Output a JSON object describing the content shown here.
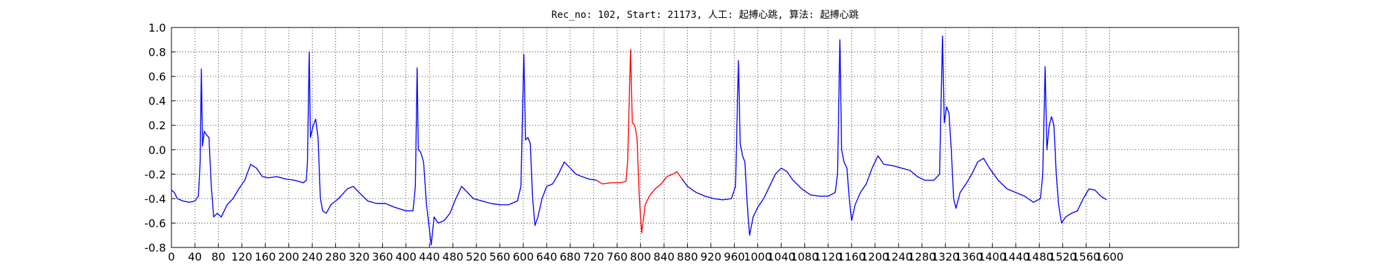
{
  "chart_data": {
    "type": "line",
    "title": "Rec_no: 102, Start: 21173, 人工: 起搏心跳, 算法: 起搏心跳",
    "xlim": [
      0,
      1820
    ],
    "ylim": [
      -0.8,
      1.0
    ],
    "xticks": [
      0,
      40,
      80,
      120,
      160,
      200,
      240,
      280,
      320,
      360,
      400,
      440,
      480,
      520,
      560,
      600,
      640,
      680,
      720,
      760,
      800,
      840,
      880,
      920,
      960,
      1000,
      1040,
      1080,
      1120,
      1160,
      1200,
      1240,
      1280,
      1320,
      1360,
      1400,
      1440,
      1480,
      1520,
      1560,
      1600
    ],
    "yticks": [
      -0.8,
      -0.6,
      -0.4,
      -0.2,
      {
        "value": 0.0,
        "label": "0.0"
      },
      0.2,
      0.4,
      0.6,
      0.8,
      {
        "value": 1.0,
        "label": "1.0"
      }
    ],
    "grid": true,
    "series": [
      {
        "color": "#0000ff",
        "x": [
          0,
          5,
          10,
          20,
          30,
          40,
          46,
          49,
          51,
          53,
          56,
          60,
          64,
          68,
          72,
          78,
          85,
          95,
          105,
          115,
          125,
          135,
          145,
          155,
          165,
          180,
          195,
          210,
          225,
          230,
          232,
          235,
          237,
          242,
          246,
          250,
          254,
          258,
          264,
          272,
          285,
          300,
          310,
          320,
          335,
          350,
          365,
          380,
          400,
          412,
          416,
          419,
          421,
          425,
          430,
          435,
          440,
          443,
          448,
          455,
          465,
          475,
          485,
          495,
          505,
          515,
          530,
          545,
          560,
          575,
          590,
          596,
          601,
          604,
          608,
          612,
          616,
          620,
          625,
          632,
          640,
          650,
          660,
          670,
          680,
          690,
          700,
          712,
          725,
          800,
          871,
          880,
          895,
          910,
          925,
          940,
          955,
          962,
          967,
          970,
          974,
          978,
          982,
          986,
          992,
          1000,
          1010,
          1020,
          1030,
          1040,
          1050,
          1060,
          1075,
          1090,
          1105,
          1120,
          1132,
          1136,
          1140,
          1143,
          1147,
          1152,
          1156,
          1160,
          1166,
          1175,
          1185,
          1195,
          1205,
          1215,
          1230,
          1245,
          1260,
          1272,
          1285,
          1300,
          1310,
          1315,
          1318,
          1322,
          1326,
          1330,
          1334,
          1338,
          1345,
          1355,
          1365,
          1375,
          1385,
          1395,
          1410,
          1425,
          1440,
          1455,
          1470,
          1482,
          1486,
          1490,
          1493,
          1497,
          1501,
          1505,
          1509,
          1513,
          1518,
          1525,
          1535,
          1545,
          1555,
          1565,
          1575,
          1585,
          1595
        ],
        "values": [
          -0.33,
          -0.35,
          -0.4,
          -0.42,
          -0.43,
          -0.42,
          -0.38,
          -0.1,
          0.66,
          0.03,
          0.15,
          0.12,
          0.1,
          -0.3,
          -0.55,
          -0.52,
          -0.55,
          -0.45,
          -0.4,
          -0.32,
          -0.25,
          -0.12,
          -0.15,
          -0.22,
          -0.23,
          -0.22,
          -0.24,
          -0.25,
          -0.27,
          -0.25,
          -0.1,
          0.8,
          0.1,
          0.2,
          0.25,
          0.1,
          -0.4,
          -0.5,
          -0.52,
          -0.45,
          -0.4,
          -0.32,
          -0.3,
          -0.35,
          -0.42,
          -0.44,
          -0.44,
          -0.47,
          -0.5,
          -0.5,
          -0.3,
          0.67,
          0.0,
          -0.02,
          -0.1,
          -0.45,
          -0.65,
          -0.78,
          -0.55,
          -0.6,
          -0.58,
          -0.52,
          -0.4,
          -0.3,
          -0.35,
          -0.4,
          -0.42,
          -0.44,
          -0.45,
          -0.45,
          -0.42,
          -0.3,
          0.78,
          0.08,
          0.1,
          0.05,
          -0.4,
          -0.62,
          -0.55,
          -0.4,
          -0.3,
          -0.28,
          -0.2,
          -0.1,
          -0.15,
          -0.2,
          -0.22,
          -0.24,
          -0.25,
          null,
          -0.24,
          -0.3,
          -0.35,
          -0.38,
          -0.4,
          -0.41,
          -0.4,
          -0.3,
          0.73,
          0.05,
          -0.05,
          -0.1,
          -0.45,
          -0.7,
          -0.55,
          -0.47,
          -0.4,
          -0.3,
          -0.2,
          -0.15,
          -0.18,
          -0.25,
          -0.32,
          -0.37,
          -0.38,
          -0.38,
          -0.35,
          -0.2,
          0.9,
          0.0,
          -0.1,
          -0.15,
          -0.4,
          -0.58,
          -0.45,
          -0.35,
          -0.28,
          -0.15,
          -0.05,
          -0.12,
          -0.13,
          -0.15,
          -0.17,
          -0.22,
          -0.25,
          -0.25,
          -0.2,
          0.93,
          0.22,
          0.35,
          0.3,
          0.0,
          -0.4,
          -0.48,
          -0.35,
          -0.28,
          -0.2,
          -0.1,
          -0.07,
          -0.15,
          -0.25,
          -0.32,
          -0.35,
          -0.38,
          -0.43,
          -0.4,
          -0.2,
          0.68,
          0.0,
          0.2,
          0.27,
          0.2,
          -0.2,
          -0.45,
          -0.6,
          -0.55,
          -0.52,
          -0.5,
          -0.4,
          -0.32,
          -0.33,
          -0.38,
          -0.41
        ]
      },
      {
        "color": "#ff0000",
        "x": [
          725,
          735,
          750,
          765,
          775,
          778,
          783,
          786,
          790,
          794,
          798,
          802,
          808,
          815,
          825,
          835,
          845,
          855,
          862,
          871
        ],
        "values": [
          -0.25,
          -0.28,
          -0.27,
          -0.27,
          -0.26,
          -0.1,
          0.82,
          0.22,
          0.2,
          0.1,
          -0.4,
          -0.68,
          -0.45,
          -0.38,
          -0.32,
          -0.28,
          -0.22,
          -0.2,
          -0.18,
          -0.24
        ]
      }
    ]
  }
}
